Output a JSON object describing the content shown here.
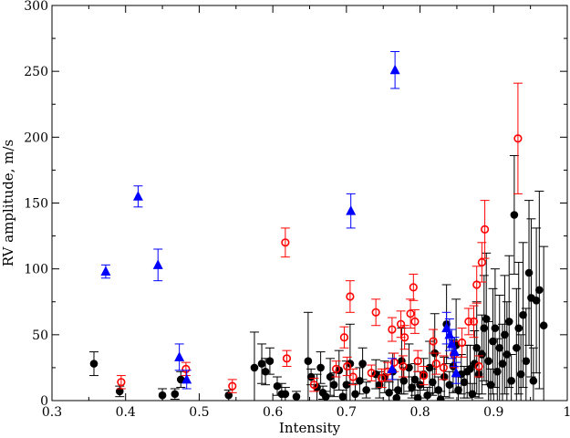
{
  "chart_data": {
    "type": "scatter",
    "title": "",
    "xlabel": "Intensity",
    "ylabel": "RV amplitude, m/s",
    "xlim": [
      0.3,
      1.0
    ],
    "ylim": [
      0,
      300
    ],
    "xticks": [
      "0.3",
      "0.4",
      "0.5",
      "0.6",
      "0.7",
      "0.8",
      "0.9",
      "1"
    ],
    "yticks": [
      "0",
      "50",
      "100",
      "150",
      "200",
      "250",
      "300"
    ],
    "grid": false,
    "legend": "none",
    "series": [
      {
        "marker": "filled-circle",
        "color": "#000000",
        "errorbar_color": "#000000",
        "points": [
          {
            "x": 0.357,
            "y": 28,
            "err": 9
          },
          {
            "x": 0.392,
            "y": 7,
            "err": 4
          },
          {
            "x": 0.45,
            "y": 4,
            "err": 5
          },
          {
            "x": 0.467,
            "y": 5,
            "err": 4
          },
          {
            "x": 0.475,
            "y": 16,
            "err": 6
          },
          {
            "x": 0.54,
            "y": 4,
            "err": 4
          },
          {
            "x": 0.575,
            "y": 25,
            "err": 27
          },
          {
            "x": 0.585,
            "y": 28,
            "err": 15
          },
          {
            "x": 0.59,
            "y": 22,
            "err": 10
          },
          {
            "x": 0.596,
            "y": 30,
            "err": 10
          },
          {
            "x": 0.606,
            "y": 11,
            "err": 7
          },
          {
            "x": 0.612,
            "y": 5,
            "err": 8
          },
          {
            "x": 0.617,
            "y": 5,
            "err": 5
          },
          {
            "x": 0.632,
            "y": 3,
            "err": 4
          },
          {
            "x": 0.648,
            "y": 30,
            "err": 37
          },
          {
            "x": 0.652,
            "y": 18,
            "err": 6
          },
          {
            "x": 0.66,
            "y": 10,
            "err": 10
          },
          {
            "x": 0.665,
            "y": 25,
            "err": 12
          },
          {
            "x": 0.668,
            "y": 6,
            "err": 5
          },
          {
            "x": 0.672,
            "y": 3,
            "err": 4
          },
          {
            "x": 0.678,
            "y": 18,
            "err": 14
          },
          {
            "x": 0.683,
            "y": 12,
            "err": 9
          },
          {
            "x": 0.69,
            "y": 23,
            "err": 15
          },
          {
            "x": 0.695,
            "y": 3,
            "err": 5
          },
          {
            "x": 0.7,
            "y": 12,
            "err": 18
          },
          {
            "x": 0.705,
            "y": 28,
            "err": 30
          },
          {
            "x": 0.712,
            "y": 5,
            "err": 8
          },
          {
            "x": 0.718,
            "y": 15,
            "err": 10
          },
          {
            "x": 0.722,
            "y": 28,
            "err": 12
          },
          {
            "x": 0.727,
            "y": 8,
            "err": 6
          },
          {
            "x": 0.74,
            "y": 20,
            "err": 11
          },
          {
            "x": 0.745,
            "y": 12,
            "err": 10
          },
          {
            "x": 0.752,
            "y": 18,
            "err": 12
          },
          {
            "x": 0.758,
            "y": 6,
            "err": 8
          },
          {
            "x": 0.763,
            "y": 22,
            "err": 14
          },
          {
            "x": 0.768,
            "y": 2,
            "err": 6
          },
          {
            "x": 0.77,
            "y": 8,
            "err": 8
          },
          {
            "x": 0.775,
            "y": 30,
            "err": 25
          },
          {
            "x": 0.778,
            "y": 15,
            "err": 10
          },
          {
            "x": 0.785,
            "y": 25,
            "err": 18
          },
          {
            "x": 0.789,
            "y": 10,
            "err": 8
          },
          {
            "x": 0.793,
            "y": 16,
            "err": 12
          },
          {
            "x": 0.797,
            "y": 2,
            "err": 6
          },
          {
            "x": 0.8,
            "y": 12,
            "err": 10
          },
          {
            "x": 0.805,
            "y": 20,
            "err": 12
          },
          {
            "x": 0.81,
            "y": 4,
            "err": 6
          },
          {
            "x": 0.813,
            "y": 25,
            "err": 20
          },
          {
            "x": 0.817,
            "y": 14,
            "err": 10
          },
          {
            "x": 0.82,
            "y": 36,
            "err": 30
          },
          {
            "x": 0.825,
            "y": 8,
            "err": 10
          },
          {
            "x": 0.828,
            "y": 1,
            "err": 6
          },
          {
            "x": 0.833,
            "y": 18,
            "err": 15
          },
          {
            "x": 0.836,
            "y": 58,
            "err": 30
          },
          {
            "x": 0.84,
            "y": 12,
            "err": 10
          },
          {
            "x": 0.845,
            "y": 26,
            "err": 20
          },
          {
            "x": 0.849,
            "y": 42,
            "err": 35
          },
          {
            "x": 0.852,
            "y": 8,
            "err": 10
          },
          {
            "x": 0.856,
            "y": 20,
            "err": 15
          },
          {
            "x": 0.86,
            "y": 14,
            "err": 12
          },
          {
            "x": 0.864,
            "y": 22,
            "err": 20
          },
          {
            "x": 0.868,
            "y": 24,
            "err": 18
          },
          {
            "x": 0.871,
            "y": 5,
            "err": 8
          },
          {
            "x": 0.874,
            "y": 28,
            "err": 25
          },
          {
            "x": 0.877,
            "y": 40,
            "err": 35
          },
          {
            "x": 0.88,
            "y": 20,
            "err": 18
          },
          {
            "x": 0.884,
            "y": 35,
            "err": 30
          },
          {
            "x": 0.887,
            "y": 55,
            "err": 40
          },
          {
            "x": 0.89,
            "y": 62,
            "err": 50
          },
          {
            "x": 0.893,
            "y": 30,
            "err": 30
          },
          {
            "x": 0.896,
            "y": 12,
            "err": 12
          },
          {
            "x": 0.899,
            "y": 45,
            "err": 40
          },
          {
            "x": 0.902,
            "y": 55,
            "err": 45
          },
          {
            "x": 0.905,
            "y": 22,
            "err": 25
          },
          {
            "x": 0.908,
            "y": 40,
            "err": 40
          },
          {
            "x": 0.912,
            "y": 28,
            "err": 30
          },
          {
            "x": 0.915,
            "y": 50,
            "err": 45
          },
          {
            "x": 0.918,
            "y": 35,
            "err": 40
          },
          {
            "x": 0.921,
            "y": 60,
            "err": 50
          },
          {
            "x": 0.924,
            "y": 15,
            "err": 20
          },
          {
            "x": 0.928,
            "y": 141,
            "err": 45
          },
          {
            "x": 0.931,
            "y": 40,
            "err": 45
          },
          {
            "x": 0.934,
            "y": 55,
            "err": 50
          },
          {
            "x": 0.937,
            "y": 20,
            "err": 30
          },
          {
            "x": 0.94,
            "y": 65,
            "err": 55
          },
          {
            "x": 0.944,
            "y": 30,
            "err": 40
          },
          {
            "x": 0.948,
            "y": 97,
            "err": 55
          },
          {
            "x": 0.951,
            "y": 78,
            "err": 60
          },
          {
            "x": 0.954,
            "y": 15,
            "err": 25
          },
          {
            "x": 0.958,
            "y": 76,
            "err": 55
          },
          {
            "x": 0.962,
            "y": 84,
            "err": 75
          },
          {
            "x": 0.968,
            "y": 57,
            "err": 60
          }
        ]
      },
      {
        "marker": "open-circle",
        "color": "#ff0000",
        "errorbar_color": "#ff0000",
        "points": [
          {
            "x": 0.394,
            "y": 14,
            "err": 5
          },
          {
            "x": 0.482,
            "y": 24,
            "err": 5
          },
          {
            "x": 0.545,
            "y": 11,
            "err": 5
          },
          {
            "x": 0.617,
            "y": 120,
            "err": 11
          },
          {
            "x": 0.619,
            "y": 32,
            "err": 6
          },
          {
            "x": 0.656,
            "y": 12,
            "err": 5
          },
          {
            "x": 0.686,
            "y": 24,
            "err": 6
          },
          {
            "x": 0.697,
            "y": 48,
            "err": 8
          },
          {
            "x": 0.701,
            "y": 26,
            "err": 7
          },
          {
            "x": 0.705,
            "y": 79,
            "err": 12
          },
          {
            "x": 0.709,
            "y": 18,
            "err": 6
          },
          {
            "x": 0.734,
            "y": 21,
            "err": 6
          },
          {
            "x": 0.74,
            "y": 67,
            "err": 10
          },
          {
            "x": 0.748,
            "y": 17,
            "err": 7
          },
          {
            "x": 0.756,
            "y": 22,
            "err": 7
          },
          {
            "x": 0.762,
            "y": 54,
            "err": 9
          },
          {
            "x": 0.765,
            "y": 29,
            "err": 7
          },
          {
            "x": 0.774,
            "y": 58,
            "err": 10
          },
          {
            "x": 0.777,
            "y": 26,
            "err": 8
          },
          {
            "x": 0.779,
            "y": 48,
            "err": 9
          },
          {
            "x": 0.787,
            "y": 66,
            "err": 11
          },
          {
            "x": 0.791,
            "y": 86,
            "err": 10
          },
          {
            "x": 0.793,
            "y": 60,
            "err": 9
          },
          {
            "x": 0.797,
            "y": 30,
            "err": 8
          },
          {
            "x": 0.805,
            "y": 19,
            "err": 7
          },
          {
            "x": 0.818,
            "y": 45,
            "err": 9
          },
          {
            "x": 0.822,
            "y": 28,
            "err": 8
          },
          {
            "x": 0.832,
            "y": 25,
            "err": 9
          },
          {
            "x": 0.846,
            "y": 35,
            "err": 10
          },
          {
            "x": 0.857,
            "y": 44,
            "err": 11
          },
          {
            "x": 0.866,
            "y": 60,
            "err": 10
          },
          {
            "x": 0.873,
            "y": 60,
            "err": 12
          },
          {
            "x": 0.877,
            "y": 88,
            "err": 14
          },
          {
            "x": 0.88,
            "y": 26,
            "err": 8
          },
          {
            "x": 0.884,
            "y": 105,
            "err": 15
          },
          {
            "x": 0.888,
            "y": 130,
            "err": 22
          },
          {
            "x": 0.933,
            "y": 199,
            "err": 42
          }
        ]
      },
      {
        "marker": "filled-triangle",
        "color": "#0000ff",
        "errorbar_color": "#0000ff",
        "points": [
          {
            "x": 0.373,
            "y": 98,
            "err": 5
          },
          {
            "x": 0.417,
            "y": 155,
            "err": 8
          },
          {
            "x": 0.444,
            "y": 103,
            "err": 12
          },
          {
            "x": 0.473,
            "y": 33,
            "err": 10
          },
          {
            "x": 0.483,
            "y": 16,
            "err": 7
          },
          {
            "x": 0.706,
            "y": 144,
            "err": 13
          },
          {
            "x": 0.762,
            "y": 24,
            "err": 8
          },
          {
            "x": 0.766,
            "y": 251,
            "err": 14
          },
          {
            "x": 0.836,
            "y": 55,
            "err": 12
          },
          {
            "x": 0.84,
            "y": 50,
            "err": 12
          },
          {
            "x": 0.843,
            "y": 43,
            "err": 11
          },
          {
            "x": 0.847,
            "y": 37,
            "err": 11
          },
          {
            "x": 0.849,
            "y": 21,
            "err": 8
          }
        ]
      }
    ]
  }
}
